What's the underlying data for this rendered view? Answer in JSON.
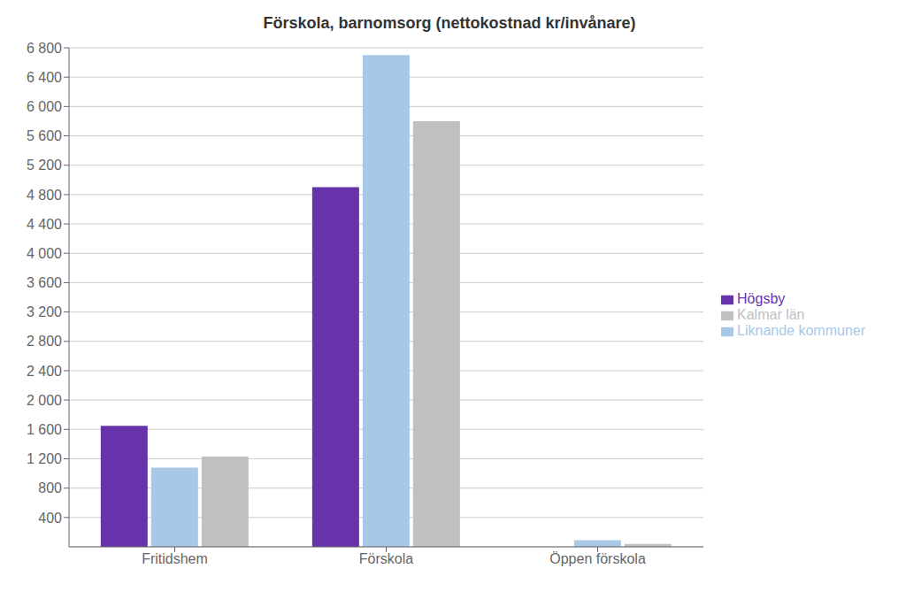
{
  "chart_data": {
    "type": "bar",
    "title": "Förskola, barnomsorg (nettokostnad kr/invånare)",
    "categories": [
      "Fritidshem",
      "Förskola",
      "Öppen förskola"
    ],
    "series": [
      {
        "name": "Högsby",
        "color": "#6633AA",
        "values": [
          1650,
          4900,
          0
        ]
      },
      {
        "name": "Liknande kommuner",
        "color": "#A8C8E8",
        "values": [
          1080,
          6700,
          90
        ]
      },
      {
        "name": "Kalmar län",
        "color": "#C0C0C0",
        "values": [
          1230,
          5800,
          40
        ]
      }
    ],
    "ylim": [
      0,
      6800
    ],
    "yticks": [
      400,
      800,
      {
        "value": 1200,
        "label": "1 200"
      },
      {
        "value": 1600,
        "label": "1 600"
      },
      {
        "value": 2000,
        "label": "2 000"
      },
      {
        "value": 2400,
        "label": "2 400"
      },
      {
        "value": 2800,
        "label": "2 800"
      },
      {
        "value": 3200,
        "label": "3 200"
      },
      {
        "value": 3600,
        "label": "3 600"
      },
      {
        "value": 4000,
        "label": "4 000"
      },
      {
        "value": 4400,
        "label": "4 400"
      },
      {
        "value": 4800,
        "label": "4 800"
      },
      {
        "value": 5200,
        "label": "5 200"
      },
      {
        "value": 5600,
        "label": "5 600"
      },
      {
        "value": 6000,
        "label": "6 000"
      },
      {
        "value": 6400,
        "label": "6 400"
      },
      {
        "value": 6800,
        "label": "6 800"
      }
    ],
    "grid": true,
    "legend": "right"
  }
}
